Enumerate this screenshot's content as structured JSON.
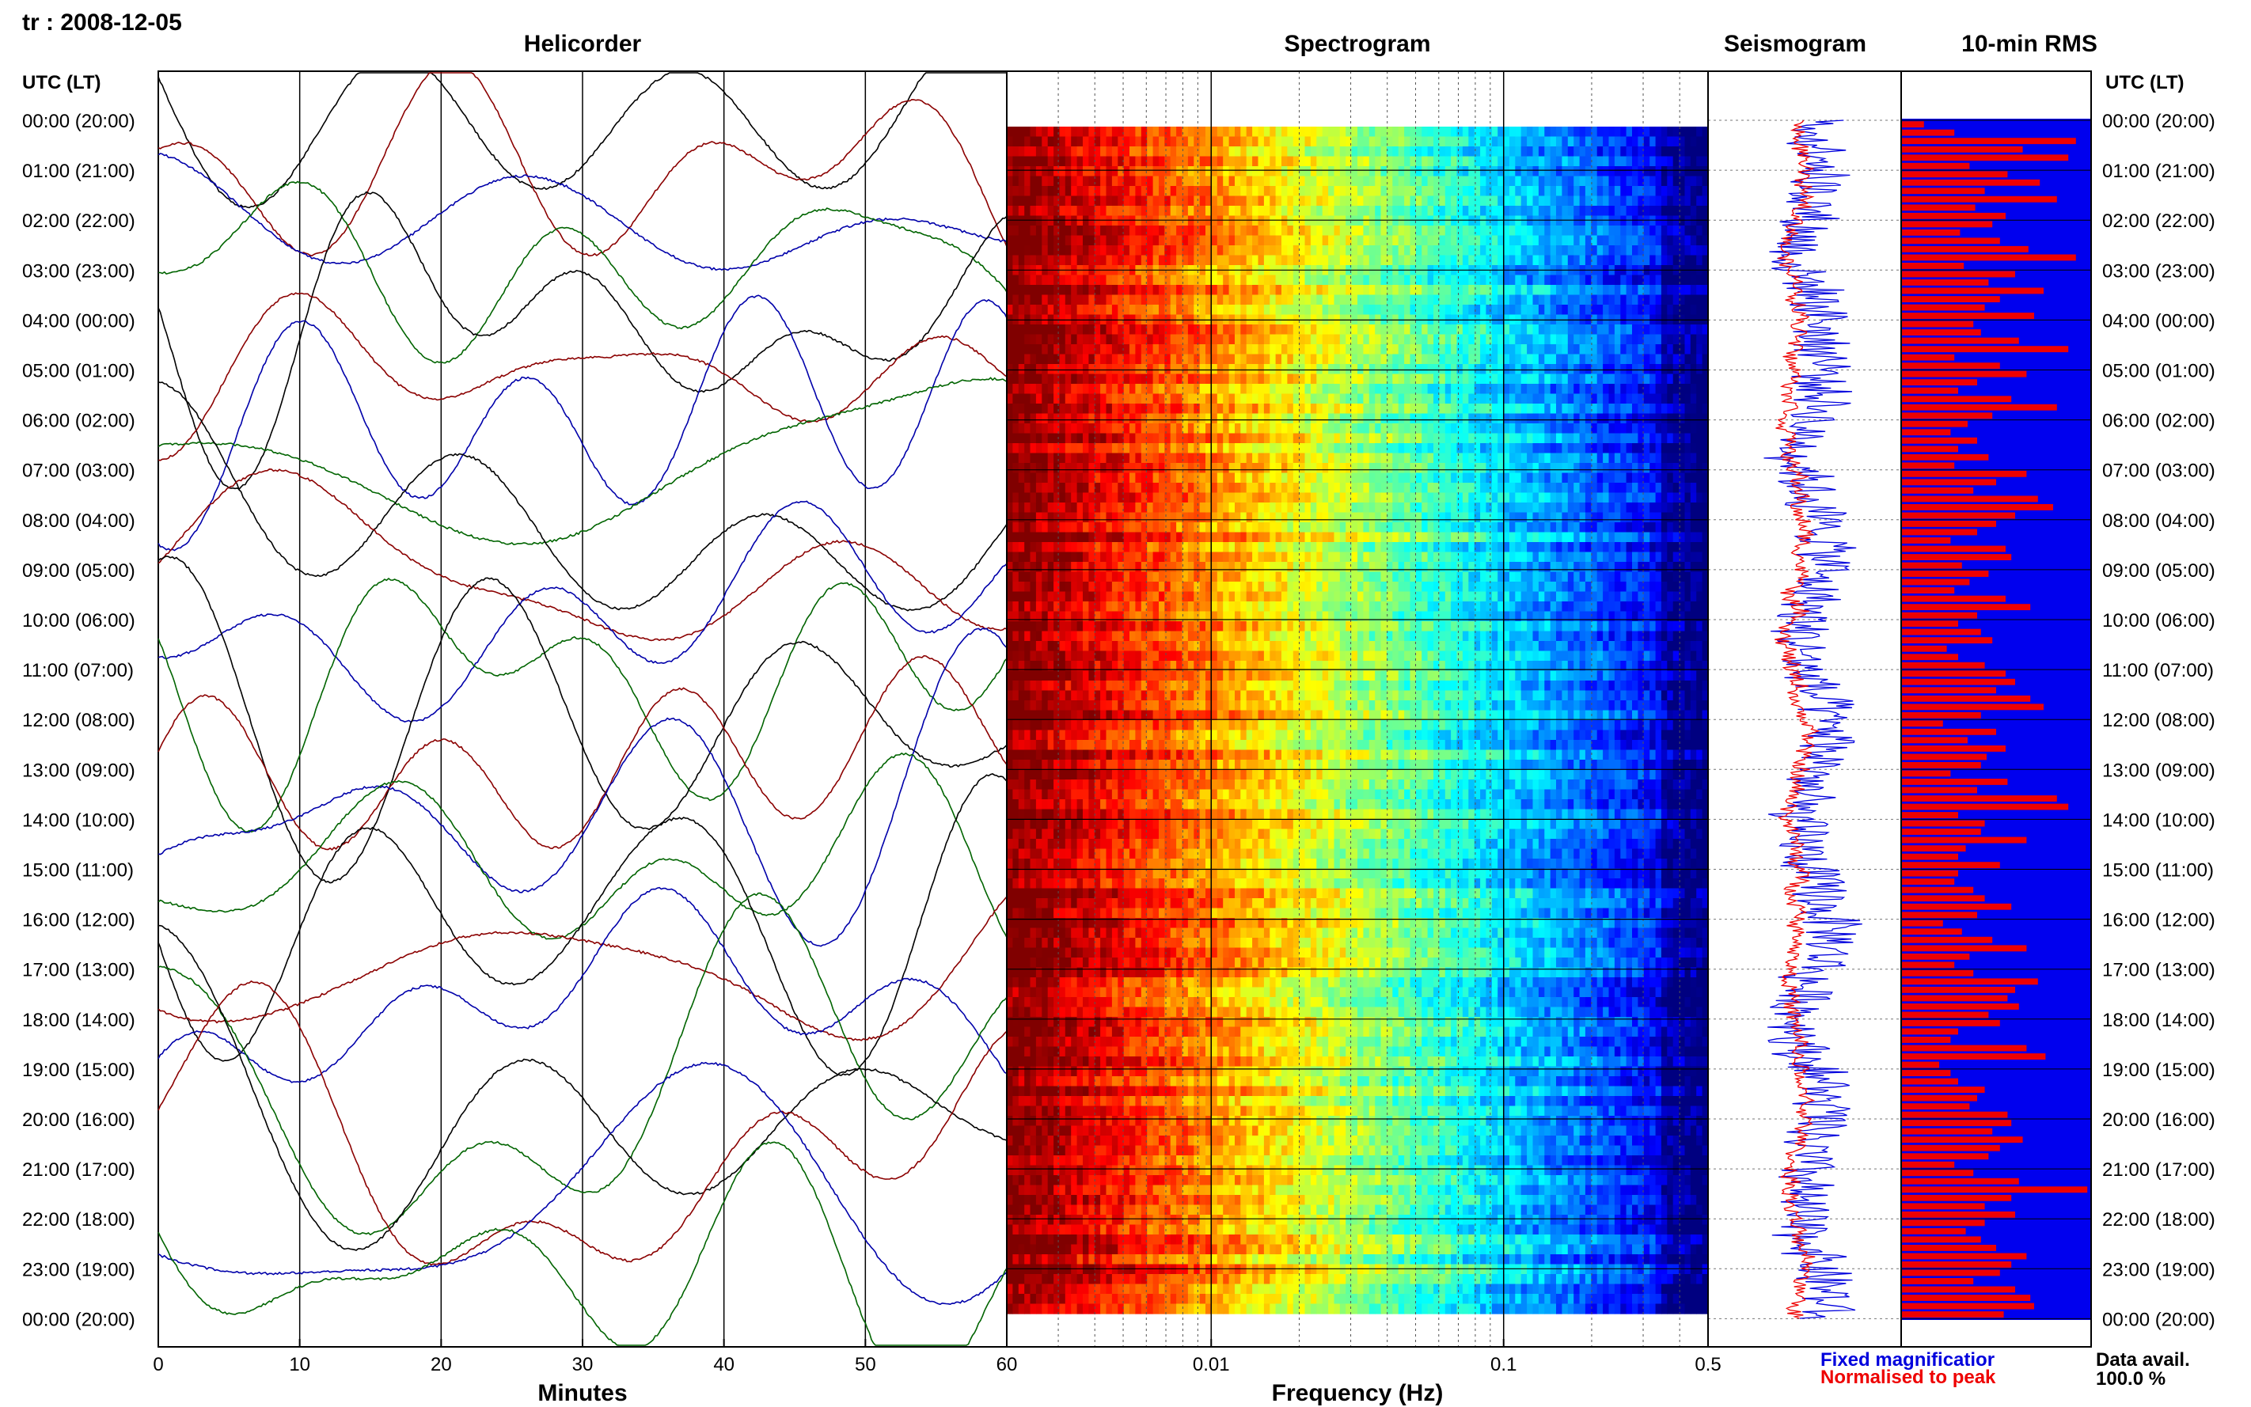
{
  "header": {
    "title": "tr : 2008-12-05"
  },
  "panels": {
    "helicorder": "Helicorder",
    "spectrogram": "Spectrogram",
    "seismogram": "Seismogram",
    "rms": "10-min RMS"
  },
  "axes": {
    "utc_label": "UTC (LT)",
    "minutes_label": "Minutes",
    "frequency_label": "Frequency (Hz)",
    "minute_ticks": [
      "0",
      "10",
      "20",
      "30",
      "40",
      "50",
      "60"
    ],
    "frequency_ticks": [
      "0.01",
      "0.1",
      "0.5"
    ]
  },
  "time_labels": [
    "00:00 (20:00)",
    "01:00 (21:00)",
    "02:00 (22:00)",
    "03:00 (23:00)",
    "04:00 (00:00)",
    "05:00 (01:00)",
    "06:00 (02:00)",
    "07:00 (03:00)",
    "08:00 (04:00)",
    "09:00 (05:00)",
    "10:00 (06:00)",
    "11:00 (07:00)",
    "12:00 (08:00)",
    "13:00 (09:00)",
    "14:00 (10:00)",
    "15:00 (11:00)",
    "16:00 (12:00)",
    "17:00 (13:00)",
    "18:00 (14:00)",
    "19:00 (15:00)",
    "20:00 (16:00)",
    "21:00 (17:00)",
    "22:00 (18:00)",
    "23:00 (19:00)",
    "00:00 (20:00)"
  ],
  "legend": {
    "fixed": "Fixed magnificatior",
    "normalised": "Normalised to peak",
    "fixed_color": "#0000dd",
    "normalised_color": "#ee0000"
  },
  "data_availability": {
    "label": "Data avail.",
    "value": "100.0 %"
  },
  "colors": {
    "trace_cycle": [
      "#000000",
      "#8b0000",
      "#0000aa",
      "#006400"
    ],
    "rms_bar": "#ee0000",
    "rms_background": "#0000ee",
    "spectrogram_scale": [
      "#7a0000",
      "#c00000",
      "#ff3000",
      "#ff9000",
      "#ffe000",
      "#b0f050",
      "#30e0e0",
      "#0090ff",
      "#0030d0"
    ]
  },
  "chart_data": [
    {
      "type": "line",
      "name": "helicorder",
      "title": "Helicorder",
      "xlabel": "Minutes",
      "xlim": [
        0,
        60
      ],
      "x_ticks": [
        0,
        10,
        20,
        30,
        40,
        50,
        60
      ],
      "rows": 24,
      "row_labels_utc": [
        "00:00",
        "01:00",
        "02:00",
        "03:00",
        "04:00",
        "05:00",
        "06:00",
        "07:00",
        "08:00",
        "09:00",
        "10:00",
        "11:00",
        "12:00",
        "13:00",
        "14:00",
        "15:00",
        "16:00",
        "17:00",
        "18:00",
        "19:00",
        "20:00",
        "21:00",
        "22:00",
        "23:00"
      ],
      "trace_colors": [
        "#000000",
        "#8b0000",
        "#0000aa",
        "#006400"
      ],
      "grid": true
    },
    {
      "type": "heatmap",
      "name": "spectrogram",
      "title": "Spectrogram",
      "xlabel": "Frequency (Hz)",
      "x_scale": "log",
      "xlim": [
        0.002,
        0.5
      ],
      "x_ticks": [
        0.01,
        0.1,
        0.5
      ],
      "rows": 24,
      "colormap": "jet",
      "note_pattern": "high power (dark red) at low frequency decreasing to blue at 0.5 Hz"
    },
    {
      "type": "line",
      "name": "seismogram",
      "title": "Seismogram",
      "series": [
        {
          "name": "Fixed magnificatior",
          "color": "#0000dd"
        },
        {
          "name": "Normalised to peak",
          "color": "#ee0000"
        }
      ]
    },
    {
      "type": "bar",
      "name": "rms",
      "title": "10-min RMS",
      "orientation": "horizontal",
      "bars_per_hour": 6,
      "values": [
        0.12,
        0.28,
        0.92,
        0.64,
        0.88,
        0.36,
        0.56,
        0.73,
        0.44,
        0.82,
        0.39,
        0.55,
        0.48,
        0.31,
        0.52,
        0.67,
        0.92,
        0.33,
        0.6,
        0.46,
        0.75,
        0.52,
        0.44,
        0.7,
        0.38,
        0.42,
        0.62,
        0.88,
        0.28,
        0.52,
        0.66,
        0.4,
        0.3,
        0.58,
        0.82,
        0.48,
        0.35,
        0.26,
        0.4,
        0.3,
        0.46,
        0.28,
        0.66,
        0.5,
        0.38,
        0.72,
        0.8,
        0.6,
        0.5,
        0.4,
        0.26,
        0.55,
        0.58,
        0.32,
        0.46,
        0.36,
        0.28,
        0.55,
        0.68,
        0.4,
        0.3,
        0.42,
        0.48,
        0.24,
        0.3,
        0.44,
        0.55,
        0.6,
        0.5,
        0.68,
        0.75,
        0.42,
        0.22,
        0.5,
        0.35,
        0.55,
        0.45,
        0.42,
        0.26,
        0.56,
        0.4,
        0.82,
        0.88,
        0.3,
        0.44,
        0.42,
        0.66,
        0.34,
        0.3,
        0.52,
        0.3,
        0.28,
        0.38,
        0.44,
        0.58,
        0.4,
        0.22,
        0.32,
        0.48,
        0.66,
        0.36,
        0.28,
        0.38,
        0.72,
        0.6,
        0.56,
        0.62,
        0.46,
        0.52,
        0.3,
        0.26,
        0.66,
        0.76,
        0.2,
        0.26,
        0.3,
        0.44,
        0.4,
        0.36,
        0.56,
        0.58,
        0.48,
        0.64,
        0.52,
        0.46,
        0.28,
        0.38,
        0.62,
        0.98,
        0.58,
        0.44,
        0.6,
        0.44,
        0.34,
        0.42,
        0.5,
        0.66,
        0.58,
        0.52,
        0.38,
        0.6,
        0.68,
        0.7,
        0.54
      ]
    }
  ]
}
